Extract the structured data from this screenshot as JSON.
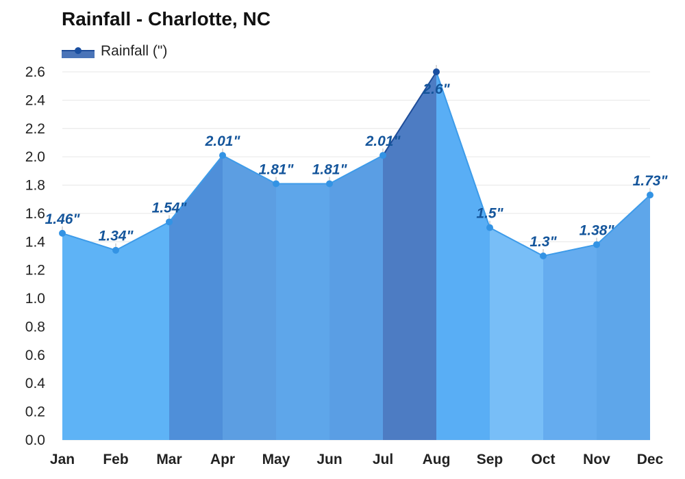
{
  "chart_data": {
    "type": "area",
    "title": "Rainfall - Charlotte, NC",
    "categories": [
      "Jan",
      "Feb",
      "Mar",
      "Apr",
      "May",
      "Jun",
      "Jul",
      "Aug",
      "Sep",
      "Oct",
      "Nov",
      "Dec"
    ],
    "series": [
      {
        "name": "Rainfall (\")",
        "values": [
          1.46,
          1.34,
          1.54,
          2.01,
          1.81,
          1.81,
          2.01,
          2.6,
          1.5,
          1.3,
          1.38,
          1.73
        ],
        "data_labels": [
          "1.46\"",
          "1.34\"",
          "1.54\"",
          "2.01\"",
          "1.81\"",
          "1.81\"",
          "2.01\"",
          "2.6\"",
          "1.5\"",
          "1.3\"",
          "1.38\"",
          "1.73\""
        ]
      }
    ],
    "yticks": [
      "0.0",
      "0.2",
      "0.4",
      "0.6",
      "0.8",
      "1.0",
      "1.2",
      "1.4",
      "1.6",
      "1.8",
      "2.0",
      "2.2",
      "2.4",
      "2.6"
    ],
    "ylim": [
      0,
      2.6
    ],
    "xlabel": "",
    "ylabel": "",
    "grid": true,
    "legend_position": "top-left",
    "colors": {
      "segment_fills": [
        "#5eb3f6",
        "#5eb3f6",
        "#4f8fd9",
        "#5c9ee2",
        "#5ea6ea",
        "#5a9ee4",
        "#4d7cc3",
        "#59aef5",
        "#78bef7",
        "#65acef",
        "#5ea6ea"
      ],
      "line": "#3d9be9",
      "marker": "#3393e4",
      "peak_marker": "#1a4fa0",
      "label_text": "#14559b"
    }
  }
}
